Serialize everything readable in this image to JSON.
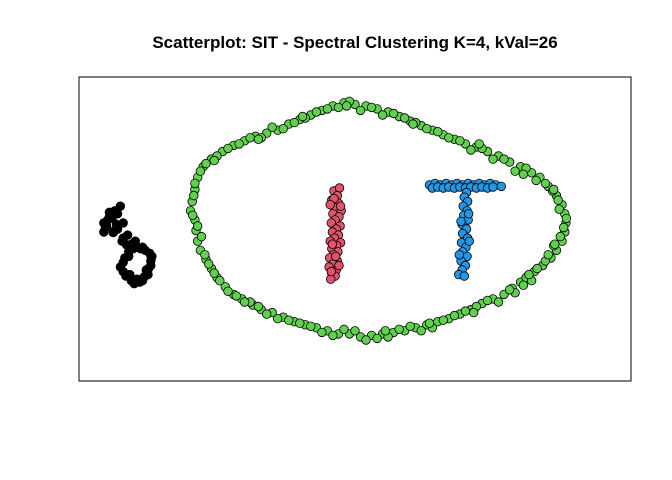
{
  "chart_data": {
    "type": "scatter",
    "title": "Scatterplot: SIT - Spectral Clustering K=4, kVal=26",
    "xlabel": "",
    "ylabel": "",
    "axes_visible": false,
    "grid": false,
    "legend": "none",
    "xlim": [
      0,
      100
    ],
    "ylim": [
      0,
      100
    ],
    "cluster_colors": [
      "#000000",
      "#DF536B",
      "#61D04F",
      "#2297E6"
    ],
    "clusters": [
      {
        "cluster": 1,
        "color": "#000000",
        "points": [
          [
            4.5,
            52
          ],
          [
            5.5,
            54
          ],
          [
            6.5,
            56
          ],
          [
            7.5,
            57.5
          ],
          [
            6.5,
            49.5
          ],
          [
            8,
            47
          ],
          [
            9.5,
            45
          ],
          [
            9,
            41
          ],
          [
            7.5,
            37.5
          ],
          [
            8.5,
            34.5
          ],
          [
            10,
            32
          ],
          [
            11.5,
            33
          ],
          [
            12.5,
            35
          ],
          [
            13,
            38
          ],
          [
            13.2,
            41
          ],
          [
            12,
            43
          ],
          [
            10.5,
            44
          ],
          [
            4.5,
            49
          ],
          [
            5,
            51
          ],
          [
            6,
            53.5
          ],
          [
            7,
            55
          ],
          [
            8,
            52
          ],
          [
            7,
            50
          ],
          [
            9.8,
            43.5
          ],
          [
            9,
            42.5
          ],
          [
            8,
            39
          ],
          [
            8,
            36
          ],
          [
            9.5,
            33
          ],
          [
            11,
            32.5
          ],
          [
            12.2,
            36.5
          ],
          [
            13,
            39.5
          ],
          [
            12.8,
            42
          ],
          [
            11.2,
            43.5
          ],
          [
            10.2,
            46
          ],
          [
            8.8,
            48
          ],
          [
            5.5,
            55.5
          ],
          [
            4.8,
            50.5
          ],
          [
            6.8,
            51.5
          ],
          [
            7.8,
            46
          ],
          [
            8.3,
            40.5
          ],
          [
            9.2,
            35
          ],
          [
            10.5,
            33.5
          ],
          [
            11.8,
            34.2
          ],
          [
            12.6,
            37
          ],
          [
            13.1,
            40.5
          ],
          [
            11.5,
            44
          ],
          [
            9.6,
            44.2
          ],
          [
            8.6,
            44.8
          ],
          [
            6.2,
            48.8
          ],
          [
            5.2,
            53
          ]
        ]
      },
      {
        "cluster": 2,
        "color": "#DF536B",
        "points": [
          [
            46.2,
            62.5
          ],
          [
            47.2,
            63.5
          ],
          [
            46.8,
            61
          ],
          [
            45.8,
            59.5
          ],
          [
            47,
            58.5
          ],
          [
            46.3,
            57
          ],
          [
            47.5,
            56
          ],
          [
            46,
            55
          ],
          [
            47.1,
            54
          ],
          [
            46.4,
            53
          ],
          [
            45.7,
            52
          ],
          [
            47.3,
            51
          ],
          [
            46.6,
            50
          ],
          [
            45.9,
            49
          ],
          [
            47,
            48
          ],
          [
            46.3,
            47
          ],
          [
            45.5,
            46
          ],
          [
            47.4,
            45.5
          ],
          [
            46.7,
            44.5
          ],
          [
            45.8,
            43.5
          ],
          [
            46.9,
            42.5
          ],
          [
            46.1,
            41.5
          ],
          [
            45.4,
            40.5
          ],
          [
            46.8,
            39.5
          ],
          [
            46,
            38.5
          ],
          [
            45.3,
            37.5
          ],
          [
            46.6,
            36.5
          ],
          [
            45.8,
            35.5
          ],
          [
            46.4,
            34.5
          ],
          [
            45.6,
            33.5
          ],
          [
            46.2,
            60
          ],
          [
            45.5,
            58
          ],
          [
            47.4,
            57.5
          ],
          [
            45.9,
            45
          ],
          [
            46.5,
            41
          ],
          [
            47.1,
            38
          ],
          [
            45.7,
            36
          ]
        ]
      },
      {
        "cluster": 3,
        "color": "#61D04F",
        "points": [
          [
            21,
            53
          ],
          [
            21.2,
            49.5
          ],
          [
            21.5,
            46
          ],
          [
            22,
            43
          ],
          [
            23,
            40
          ],
          [
            24,
            37
          ],
          [
            25,
            34
          ],
          [
            26.5,
            31
          ],
          [
            28,
            28.5
          ],
          [
            29.5,
            27
          ],
          [
            31.5,
            25
          ],
          [
            33,
            23.5
          ],
          [
            35,
            22.5
          ],
          [
            37,
            21
          ],
          [
            39,
            19.5
          ],
          [
            41,
            18.5
          ],
          [
            43,
            17.5
          ],
          [
            45,
            16.5
          ],
          [
            47,
            15.5
          ],
          [
            49,
            15.5
          ],
          [
            51,
            14.5
          ],
          [
            53,
            15
          ],
          [
            55,
            15.5
          ],
          [
            57,
            16
          ],
          [
            59,
            16.5
          ],
          [
            61,
            17.5
          ],
          [
            63,
            18.5
          ],
          [
            65,
            19.5
          ],
          [
            67,
            20.5
          ],
          [
            69,
            22
          ],
          [
            71,
            23.5
          ],
          [
            73,
            25.5
          ],
          [
            75,
            27
          ],
          [
            77,
            28.5
          ],
          [
            78.5,
            30.5
          ],
          [
            80,
            32.5
          ],
          [
            81,
            34
          ],
          [
            82.5,
            36
          ],
          [
            84,
            38
          ],
          [
            85.5,
            40.5
          ],
          [
            86.5,
            43
          ],
          [
            87.5,
            46
          ],
          [
            88,
            49
          ],
          [
            88.2,
            52
          ],
          [
            88,
            55
          ],
          [
            87.5,
            58
          ],
          [
            86.5,
            61
          ],
          [
            85,
            64
          ],
          [
            83.5,
            67
          ],
          [
            82,
            68.5
          ],
          [
            80,
            70.5
          ],
          [
            78,
            72
          ],
          [
            76,
            74
          ],
          [
            74,
            75.5
          ],
          [
            72,
            77
          ],
          [
            70,
            78
          ],
          [
            68,
            79.5
          ],
          [
            66,
            81
          ],
          [
            64,
            82.5
          ],
          [
            62,
            84
          ],
          [
            60,
            85.5
          ],
          [
            58,
            87
          ],
          [
            56,
            88.5
          ],
          [
            54,
            89.5
          ],
          [
            52,
            90.5
          ],
          [
            50,
            91
          ],
          [
            48,
            91.5
          ],
          [
            46,
            90.5
          ],
          [
            44,
            89
          ],
          [
            42,
            87.5
          ],
          [
            40,
            86
          ],
          [
            38,
            84.5
          ],
          [
            36,
            82.5
          ],
          [
            34,
            81.5
          ],
          [
            32,
            80.5
          ],
          [
            30,
            79
          ],
          [
            28,
            77.5
          ],
          [
            26,
            75.5
          ],
          [
            24,
            73
          ],
          [
            22.5,
            70.5
          ],
          [
            21.5,
            67
          ],
          [
            21,
            63
          ],
          [
            20.5,
            59
          ],
          [
            20.2,
            56
          ],
          [
            21.5,
            51
          ],
          [
            23.5,
            38.5
          ],
          [
            27,
            29.5
          ],
          [
            31,
            26
          ],
          [
            36,
            20.5
          ],
          [
            40,
            19
          ],
          [
            44,
            16
          ],
          [
            48,
            17
          ],
          [
            52,
            13.5
          ],
          [
            56,
            14.5
          ],
          [
            60,
            18
          ],
          [
            64,
            17.5
          ],
          [
            68,
            21.5
          ],
          [
            72,
            24.5
          ],
          [
            76,
            26
          ],
          [
            79,
            29
          ],
          [
            82,
            33
          ],
          [
            84.5,
            39.5
          ],
          [
            86,
            44.5
          ],
          [
            87.8,
            50.5
          ],
          [
            87,
            56.5
          ],
          [
            85.8,
            62.5
          ],
          [
            82.8,
            66
          ],
          [
            79,
            69
          ],
          [
            75,
            73
          ],
          [
            71,
            76
          ],
          [
            67,
            80
          ],
          [
            63,
            83
          ],
          [
            59,
            86.5
          ],
          [
            55,
            87.5
          ],
          [
            51,
            89
          ],
          [
            47,
            90
          ],
          [
            43,
            88.5
          ],
          [
            39,
            85
          ],
          [
            35,
            83.5
          ],
          [
            31,
            80
          ],
          [
            27,
            76.5
          ],
          [
            23,
            71.5
          ],
          [
            21,
            65
          ],
          [
            22.2,
            47.5
          ],
          [
            24.5,
            35.5
          ],
          [
            30,
            26
          ],
          [
            34,
            22
          ],
          [
            38,
            20
          ],
          [
            46,
            15
          ],
          [
            50,
            16.5
          ],
          [
            54,
            14
          ],
          [
            58,
            17
          ],
          [
            62,
            16.5
          ],
          [
            66,
            20
          ],
          [
            70,
            23
          ],
          [
            74,
            26.5
          ],
          [
            78,
            30
          ],
          [
            81.5,
            35
          ],
          [
            83,
            37
          ],
          [
            85,
            41.5
          ],
          [
            87.2,
            47.5
          ],
          [
            86.8,
            59.5
          ],
          [
            84.5,
            65
          ],
          [
            81,
            70
          ],
          [
            77,
            73
          ],
          [
            73,
            76.5
          ],
          [
            69,
            79
          ],
          [
            65,
            82
          ],
          [
            61,
            85
          ],
          [
            57,
            88
          ],
          [
            53,
            90
          ],
          [
            49,
            92
          ],
          [
            45,
            89.5
          ],
          [
            41,
            86.5
          ],
          [
            37,
            83
          ],
          [
            33,
            80
          ],
          [
            29,
            78
          ],
          [
            25,
            74
          ],
          [
            22,
            69
          ],
          [
            20.8,
            61
          ],
          [
            20.6,
            54.5
          ],
          [
            22.8,
            41.5
          ],
          [
            25.5,
            33
          ],
          [
            28.5,
            28
          ],
          [
            32.5,
            24.5
          ],
          [
            42,
            18
          ],
          [
            55.5,
            16.5
          ],
          [
            63.5,
            19
          ],
          [
            71.5,
            22.5
          ],
          [
            80.5,
            31.5
          ],
          [
            86.2,
            45
          ],
          [
            88.3,
            53.5
          ],
          [
            86,
            63
          ],
          [
            80.5,
            68
          ],
          [
            72.5,
            78
          ],
          [
            60.5,
            84.5
          ],
          [
            48.5,
            90.5
          ],
          [
            40.5,
            87
          ],
          [
            32.5,
            79.5
          ],
          [
            24.5,
            72.5
          ]
        ]
      },
      {
        "cluster": 4,
        "color": "#2297E6",
        "points": [
          [
            63.5,
            64.5
          ],
          [
            64.5,
            65
          ],
          [
            65.5,
            64.5
          ],
          [
            66.5,
            65
          ],
          [
            67.5,
            64.5
          ],
          [
            68.5,
            65
          ],
          [
            69.5,
            64.5
          ],
          [
            70.5,
            65
          ],
          [
            71.5,
            64.5
          ],
          [
            72.5,
            65
          ],
          [
            73.5,
            64.5
          ],
          [
            74.5,
            65
          ],
          [
            75.5,
            64.5
          ],
          [
            76.5,
            64
          ],
          [
            64,
            63.5
          ],
          [
            65,
            63.8
          ],
          [
            66,
            63.5
          ],
          [
            67,
            63.8
          ],
          [
            68,
            63.5
          ],
          [
            69,
            63.8
          ],
          [
            70,
            63.5
          ],
          [
            71,
            63.8
          ],
          [
            72,
            63.5
          ],
          [
            73,
            63.8
          ],
          [
            74,
            63.5
          ],
          [
            75,
            63.8
          ],
          [
            70.2,
            62
          ],
          [
            69.8,
            60.5
          ],
          [
            70.4,
            59
          ],
          [
            69.6,
            57.5
          ],
          [
            70.3,
            56
          ],
          [
            69.7,
            54.5
          ],
          [
            70.5,
            53
          ],
          [
            69.4,
            51.5
          ],
          [
            70.2,
            50
          ],
          [
            69.5,
            48.5
          ],
          [
            70.4,
            47
          ],
          [
            69.3,
            45.5
          ],
          [
            70.1,
            44
          ],
          [
            69.5,
            42.5
          ],
          [
            70.3,
            41
          ],
          [
            69.2,
            39.5
          ],
          [
            70,
            38
          ],
          [
            69.4,
            36.5
          ],
          [
            68.8,
            35
          ],
          [
            69.8,
            34.5
          ],
          [
            70.6,
            55
          ],
          [
            69.2,
            52.5
          ],
          [
            70.7,
            46
          ],
          [
            68.9,
            41.5
          ]
        ]
      }
    ]
  }
}
